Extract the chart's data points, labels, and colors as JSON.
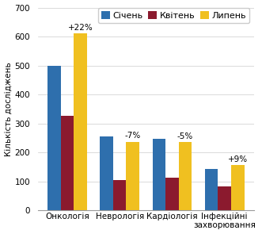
{
  "categories": [
    "Онкологія",
    "Неврологія",
    "Кардіологія",
    "Інфекційні\nзахворювання"
  ],
  "january": [
    500,
    255,
    248,
    143
  ],
  "april": [
    325,
    105,
    112,
    83
  ],
  "july": [
    610,
    237,
    235,
    155
  ],
  "annotations": [
    "+22%",
    "-7%",
    "-5%",
    "+9%"
  ],
  "colors": {
    "january": "#2E6FAD",
    "april": "#8B1A2E",
    "july": "#F0C020"
  },
  "legend_labels": [
    "Січень",
    "Квітень",
    "Липень"
  ],
  "ylabel": "Кількість досліджень",
  "ylim": [
    0,
    700
  ],
  "yticks": [
    0,
    100,
    200,
    300,
    400,
    500,
    600,
    700
  ],
  "bar_width": 0.25,
  "annotation_fontsize": 7.5,
  "axis_fontsize": 7.5,
  "legend_fontsize": 8,
  "ylabel_fontsize": 7.5,
  "background_color": "#FFFFFF"
}
